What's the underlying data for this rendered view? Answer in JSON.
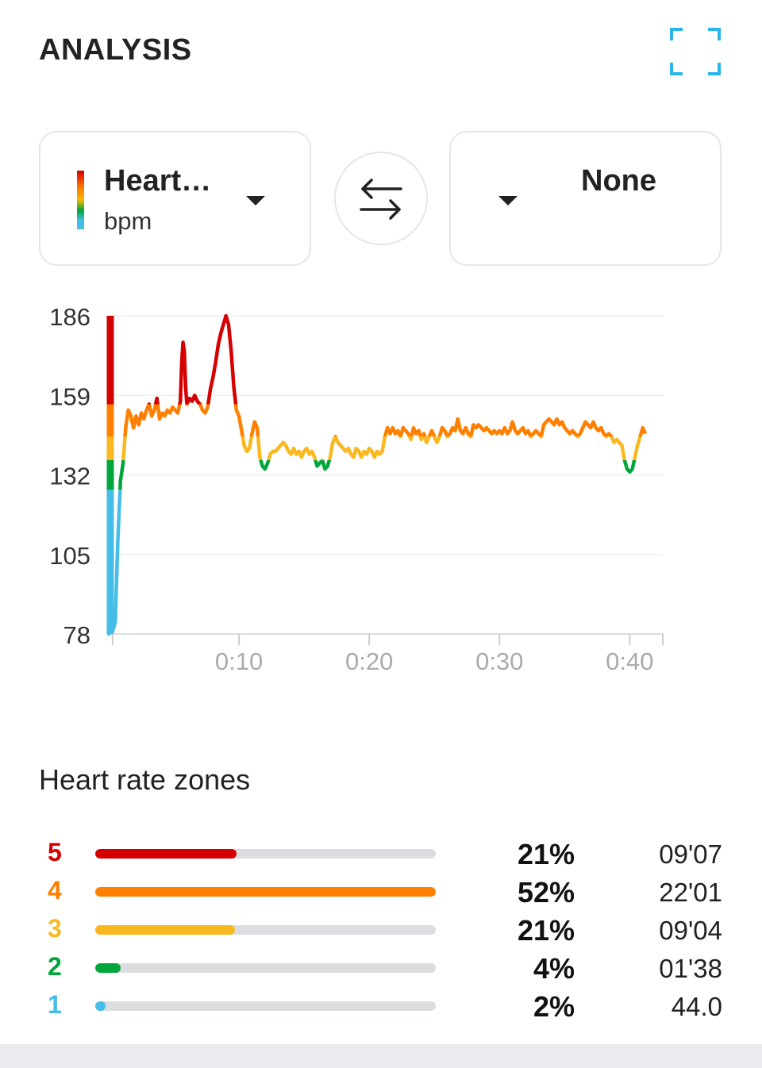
{
  "header": {
    "title": "ANALYSIS",
    "expand_icon": "fullscreen-corners-icon",
    "accent_color": "#2ab4e8"
  },
  "selectors": {
    "left": {
      "label": "Heart…",
      "unit": "bpm"
    },
    "swap_icon": "swap-arrows-icon",
    "right": {
      "label": "None"
    }
  },
  "chart_data": {
    "type": "line",
    "ylabel": "bpm",
    "y_ticks": [
      "186",
      "159",
      "132",
      "105",
      "78"
    ],
    "ylim": [
      78,
      186
    ],
    "x_ticks": [
      "0:10",
      "0:20",
      "0:30",
      "0:40"
    ],
    "x_tick_values": [
      10,
      20,
      30,
      40
    ],
    "xlim": [
      0,
      42.6
    ],
    "zone_thresholds": [
      {
        "min": 78,
        "max": 127,
        "color": "#45bde6"
      },
      {
        "min": 127,
        "max": 137,
        "color": "#00a63c"
      },
      {
        "min": 137,
        "max": 145,
        "color": "#f9b820"
      },
      {
        "min": 145,
        "max": 156,
        "color": "#ff7f00"
      },
      {
        "min": 156,
        "max": 186,
        "color": "#d50000"
      }
    ],
    "series": [
      {
        "name": "Heart rate",
        "points": [
          [
            0,
            186
          ],
          [
            0,
            78
          ],
          [
            0.3,
            79
          ],
          [
            0.5,
            82
          ],
          [
            0.7,
            110
          ],
          [
            0.9,
            130
          ],
          [
            1.1,
            136
          ],
          [
            1.3,
            148
          ],
          [
            1.5,
            154
          ],
          [
            1.7,
            152
          ],
          [
            1.9,
            148
          ],
          [
            2.1,
            152
          ],
          [
            2.3,
            149
          ],
          [
            2.5,
            153
          ],
          [
            2.7,
            151
          ],
          [
            2.9,
            154
          ],
          [
            3.1,
            156
          ],
          [
            3.3,
            152
          ],
          [
            3.5,
            154
          ],
          [
            3.7,
            158
          ],
          [
            3.9,
            151
          ],
          [
            4.1,
            153
          ],
          [
            4.3,
            152
          ],
          [
            4.5,
            154
          ],
          [
            4.7,
            153
          ],
          [
            4.9,
            155
          ],
          [
            5.1,
            154
          ],
          [
            5.3,
            153
          ],
          [
            5.5,
            157
          ],
          [
            5.6,
            170
          ],
          [
            5.7,
            177
          ],
          [
            5.8,
            174
          ],
          [
            5.9,
            162
          ],
          [
            6.0,
            156
          ],
          [
            6.2,
            158
          ],
          [
            6.4,
            157
          ],
          [
            6.6,
            159
          ],
          [
            6.8,
            157
          ],
          [
            7.0,
            156
          ],
          [
            7.2,
            154
          ],
          [
            7.4,
            153
          ],
          [
            7.6,
            155
          ],
          [
            7.8,
            161
          ],
          [
            8.0,
            165
          ],
          [
            8.2,
            170
          ],
          [
            8.4,
            176
          ],
          [
            8.6,
            180
          ],
          [
            8.8,
            183
          ],
          [
            9.0,
            186
          ],
          [
            9.2,
            183
          ],
          [
            9.4,
            174
          ],
          [
            9.6,
            162
          ],
          [
            9.8,
            154
          ],
          [
            10.0,
            152
          ],
          [
            10.2,
            147
          ],
          [
            10.4,
            142
          ],
          [
            10.6,
            140
          ],
          [
            10.8,
            141
          ],
          [
            11.0,
            146
          ],
          [
            11.2,
            150
          ],
          [
            11.4,
            148
          ],
          [
            11.6,
            138
          ],
          [
            11.8,
            135
          ],
          [
            12.0,
            134
          ],
          [
            12.2,
            136
          ],
          [
            12.4,
            139
          ],
          [
            12.6,
            140
          ],
          [
            12.8,
            140
          ],
          [
            13.0,
            141
          ],
          [
            13.2,
            142
          ],
          [
            13.4,
            143
          ],
          [
            13.6,
            142
          ],
          [
            13.8,
            140
          ],
          [
            14.0,
            139
          ],
          [
            14.2,
            141
          ],
          [
            14.4,
            139
          ],
          [
            14.6,
            140
          ],
          [
            14.8,
            138
          ],
          [
            15.0,
            140
          ],
          [
            15.2,
            141
          ],
          [
            15.4,
            139
          ],
          [
            15.6,
            140
          ],
          [
            15.8,
            138
          ],
          [
            16.0,
            135
          ],
          [
            16.2,
            136
          ],
          [
            16.4,
            137
          ],
          [
            16.6,
            134
          ],
          [
            16.8,
            135
          ],
          [
            17.0,
            138
          ],
          [
            17.2,
            143
          ],
          [
            17.4,
            145
          ],
          [
            17.6,
            143
          ],
          [
            17.8,
            142
          ],
          [
            18.0,
            141
          ],
          [
            18.2,
            140
          ],
          [
            18.4,
            141
          ],
          [
            18.6,
            139
          ],
          [
            18.8,
            138
          ],
          [
            19.0,
            141
          ],
          [
            19.2,
            140
          ],
          [
            19.4,
            138
          ],
          [
            19.6,
            140
          ],
          [
            19.8,
            139
          ],
          [
            20.0,
            141
          ],
          [
            20.2,
            140
          ],
          [
            20.4,
            138
          ],
          [
            20.6,
            140
          ],
          [
            20.8,
            139
          ],
          [
            21.0,
            140
          ],
          [
            21.2,
            145
          ],
          [
            21.4,
            148
          ],
          [
            21.6,
            146
          ],
          [
            21.8,
            148
          ],
          [
            22.0,
            146
          ],
          [
            22.2,
            147
          ],
          [
            22.4,
            145
          ],
          [
            22.6,
            148
          ],
          [
            22.8,
            147
          ],
          [
            23.0,
            146
          ],
          [
            23.2,
            144
          ],
          [
            23.4,
            148
          ],
          [
            23.6,
            146
          ],
          [
            23.8,
            147
          ],
          [
            24.0,
            144
          ],
          [
            24.2,
            146
          ],
          [
            24.4,
            143
          ],
          [
            24.6,
            145
          ],
          [
            24.8,
            147
          ],
          [
            25.0,
            145
          ],
          [
            25.2,
            143
          ],
          [
            25.4,
            145
          ],
          [
            25.6,
            148
          ],
          [
            25.8,
            147
          ],
          [
            26.0,
            145
          ],
          [
            26.2,
            146
          ],
          [
            26.4,
            148
          ],
          [
            26.6,
            147
          ],
          [
            26.8,
            151
          ],
          [
            27.0,
            147
          ],
          [
            27.2,
            146
          ],
          [
            27.4,
            148
          ],
          [
            27.6,
            146
          ],
          [
            27.8,
            145
          ],
          [
            28.0,
            149
          ],
          [
            28.2,
            148
          ],
          [
            28.4,
            149
          ],
          [
            28.6,
            148
          ],
          [
            28.8,
            147
          ],
          [
            29.0,
            148
          ],
          [
            29.2,
            147
          ],
          [
            29.4,
            146
          ],
          [
            29.6,
            147
          ],
          [
            29.8,
            146
          ],
          [
            30.0,
            147
          ],
          [
            30.2,
            146
          ],
          [
            30.4,
            148
          ],
          [
            30.6,
            146
          ],
          [
            30.8,
            147
          ],
          [
            31.0,
            150
          ],
          [
            31.2,
            147
          ],
          [
            31.4,
            146
          ],
          [
            31.6,
            147
          ],
          [
            31.8,
            148
          ],
          [
            32.0,
            146
          ],
          [
            32.2,
            147
          ],
          [
            32.4,
            145
          ],
          [
            32.6,
            146
          ],
          [
            32.8,
            147
          ],
          [
            33.0,
            146
          ],
          [
            33.2,
            145
          ],
          [
            33.4,
            149
          ],
          [
            33.6,
            150
          ],
          [
            33.8,
            151
          ],
          [
            34.0,
            150
          ],
          [
            34.2,
            149
          ],
          [
            34.4,
            151
          ],
          [
            34.6,
            149
          ],
          [
            34.8,
            150
          ],
          [
            35.0,
            148
          ],
          [
            35.2,
            147
          ],
          [
            35.4,
            146
          ],
          [
            35.6,
            147
          ],
          [
            35.8,
            146
          ],
          [
            36.0,
            145
          ],
          [
            36.2,
            146
          ],
          [
            36.4,
            148
          ],
          [
            36.6,
            150
          ],
          [
            36.8,
            149
          ],
          [
            37.0,
            148
          ],
          [
            37.2,
            150
          ],
          [
            37.4,
            148
          ],
          [
            37.6,
            147
          ],
          [
            37.8,
            148
          ],
          [
            38.0,
            146
          ],
          [
            38.2,
            145
          ],
          [
            38.4,
            146
          ],
          [
            38.6,
            145
          ],
          [
            38.8,
            143
          ],
          [
            39.0,
            144
          ],
          [
            39.2,
            143
          ],
          [
            39.4,
            142
          ],
          [
            39.6,
            137
          ],
          [
            39.8,
            134
          ],
          [
            40.0,
            133
          ],
          [
            40.2,
            134
          ],
          [
            40.4,
            138
          ],
          [
            40.6,
            142
          ],
          [
            40.8,
            145
          ],
          [
            41.0,
            148
          ],
          [
            41.2,
            146
          ]
        ]
      }
    ]
  },
  "zones": {
    "title": "Heart rate zones",
    "items": [
      {
        "num": "5",
        "color": "#d50000",
        "fill": 0.415,
        "percent": "21%",
        "time": "09'07"
      },
      {
        "num": "4",
        "color": "#ff7f00",
        "fill": 1.0,
        "percent": "52%",
        "time": "22'01"
      },
      {
        "num": "3",
        "color": "#f9b820",
        "fill": 0.41,
        "percent": "21%",
        "time": "09'04"
      },
      {
        "num": "2",
        "color": "#00a63c",
        "fill": 0.075,
        "percent": "4%",
        "time": "01'38"
      },
      {
        "num": "1",
        "color": "#45bde6",
        "fill": 0.03,
        "percent": "2%",
        "time": "44.0"
      }
    ]
  }
}
